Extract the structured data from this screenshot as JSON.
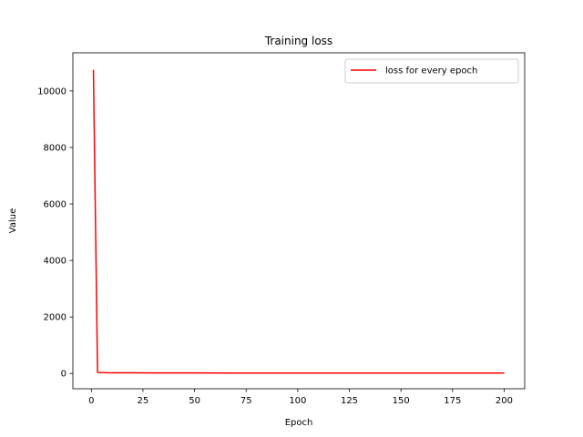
{
  "chart_data": {
    "type": "line",
    "title": "Training loss",
    "xlabel": "Epoch",
    "ylabel": "Value",
    "xlim": [
      -8.95,
      209.95
    ],
    "ylim": [
      -540,
      11350
    ],
    "xticks": [
      0,
      25,
      50,
      75,
      100,
      125,
      150,
      175,
      200
    ],
    "yticks": [
      0,
      2000,
      4000,
      6000,
      8000,
      10000
    ],
    "grid": false,
    "legend_position": "top-right",
    "series": [
      {
        "name": "loss for every epoch",
        "color": "#ff0000",
        "x": [
          1,
          3,
          5,
          10,
          20,
          30,
          50,
          75,
          100,
          125,
          150,
          175,
          200
        ],
        "y": [
          10750,
          40,
          30,
          25,
          22,
          20,
          18,
          17,
          16,
          15,
          15,
          14,
          14
        ]
      }
    ]
  }
}
